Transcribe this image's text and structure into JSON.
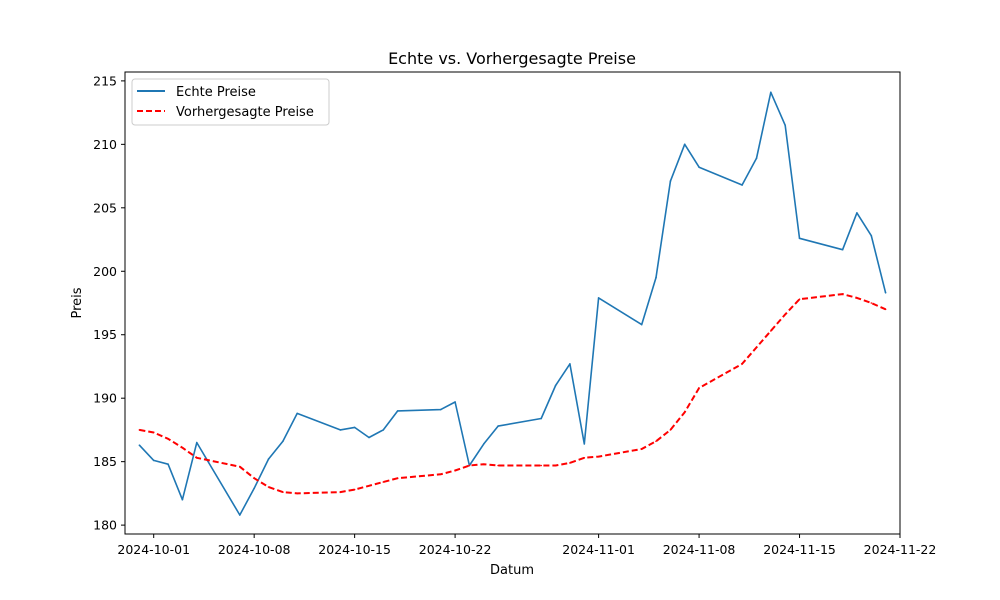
{
  "chart_data": {
    "type": "line",
    "title": "Echte vs. Vorhergesagte Preise",
    "xlabel": "Datum",
    "ylabel": "Preis",
    "xlim": [
      "2024-09-29",
      "2024-11-22"
    ],
    "ylim": [
      179.3,
      215.7
    ],
    "x_ticks": [
      "2024-10-01",
      "2024-10-08",
      "2024-10-15",
      "2024-10-22",
      "2024-11-01",
      "2024-11-08",
      "2024-11-15",
      "2024-11-22"
    ],
    "y_ticks": [
      180,
      185,
      190,
      195,
      200,
      205,
      210,
      215
    ],
    "grid": false,
    "legend_position": "upper left",
    "series": [
      {
        "name": "Echte Preise",
        "color": "#1f77b4",
        "style": "solid",
        "x": [
          "2024-09-30",
          "2024-10-01",
          "2024-10-02",
          "2024-10-03",
          "2024-10-04",
          "2024-10-07",
          "2024-10-08",
          "2024-10-09",
          "2024-10-10",
          "2024-10-11",
          "2024-10-14",
          "2024-10-15",
          "2024-10-16",
          "2024-10-17",
          "2024-10-18",
          "2024-10-21",
          "2024-10-22",
          "2024-10-23",
          "2024-10-24",
          "2024-10-25",
          "2024-10-28",
          "2024-10-29",
          "2024-10-30",
          "2024-10-31",
          "2024-11-01",
          "2024-11-04",
          "2024-11-05",
          "2024-11-06",
          "2024-11-07",
          "2024-11-08",
          "2024-11-11",
          "2024-11-12",
          "2024-11-13",
          "2024-11-14",
          "2024-11-15",
          "2024-11-18",
          "2024-11-19",
          "2024-11-20",
          "2024-11-21"
        ],
        "values": [
          186.3,
          185.1,
          184.8,
          182.0,
          186.5,
          180.8,
          182.9,
          185.2,
          186.6,
          188.8,
          187.5,
          187.7,
          186.9,
          187.5,
          189.0,
          189.1,
          189.7,
          184.7,
          186.4,
          187.8,
          188.4,
          191.0,
          192.7,
          186.4,
          197.9,
          195.8,
          199.5,
          207.1,
          210.0,
          208.2,
          206.8,
          208.9,
          214.1,
          211.5,
          202.6,
          201.7,
          204.6,
          202.8,
          198.3
        ]
      },
      {
        "name": "Vorhergesagte Preise",
        "color": "#ff0000",
        "style": "dashed",
        "x": [
          "2024-09-30",
          "2024-10-01",
          "2024-10-02",
          "2024-10-03",
          "2024-10-04",
          "2024-10-07",
          "2024-10-08",
          "2024-10-09",
          "2024-10-10",
          "2024-10-11",
          "2024-10-14",
          "2024-10-15",
          "2024-10-16",
          "2024-10-17",
          "2024-10-18",
          "2024-10-21",
          "2024-10-22",
          "2024-10-23",
          "2024-10-24",
          "2024-10-25",
          "2024-10-28",
          "2024-10-29",
          "2024-10-30",
          "2024-10-31",
          "2024-11-01",
          "2024-11-04",
          "2024-11-05",
          "2024-11-06",
          "2024-11-07",
          "2024-11-08",
          "2024-11-11",
          "2024-11-12",
          "2024-11-13",
          "2024-11-14",
          "2024-11-15",
          "2024-11-18",
          "2024-11-19",
          "2024-11-20",
          "2024-11-21"
        ],
        "values": [
          187.5,
          187.3,
          186.8,
          186.1,
          185.3,
          184.6,
          183.7,
          183.0,
          182.6,
          182.5,
          182.6,
          182.8,
          183.1,
          183.4,
          183.7,
          184.0,
          184.3,
          184.7,
          184.8,
          184.7,
          184.7,
          184.7,
          184.9,
          185.3,
          185.4,
          186.0,
          186.6,
          187.5,
          188.9,
          190.8,
          192.7,
          194.0,
          195.3,
          196.6,
          197.8,
          198.2,
          197.9,
          197.5,
          197.0
        ]
      }
    ]
  }
}
